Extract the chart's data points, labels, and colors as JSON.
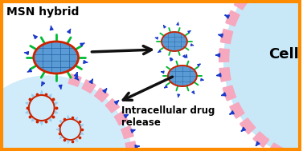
{
  "bg_color": "#ffffff",
  "border_color": "#FF8C00",
  "title_msn": "MSN hybrid",
  "title_cell": "Cell",
  "title_release": "Intracellular drug\nrelease",
  "msn_color": "#5B9BD5",
  "msn_outline_color": "#CC2200",
  "msn_spike_color": "#00BB33",
  "cs_pink": "#F5A8BE",
  "blue_arrow_color": "#1A3ACC",
  "cell_bg": "#C8E8F8",
  "intracell_bg": "#D0ECFA",
  "release_arrow_color": "#99CCEE",
  "black": "#111111"
}
